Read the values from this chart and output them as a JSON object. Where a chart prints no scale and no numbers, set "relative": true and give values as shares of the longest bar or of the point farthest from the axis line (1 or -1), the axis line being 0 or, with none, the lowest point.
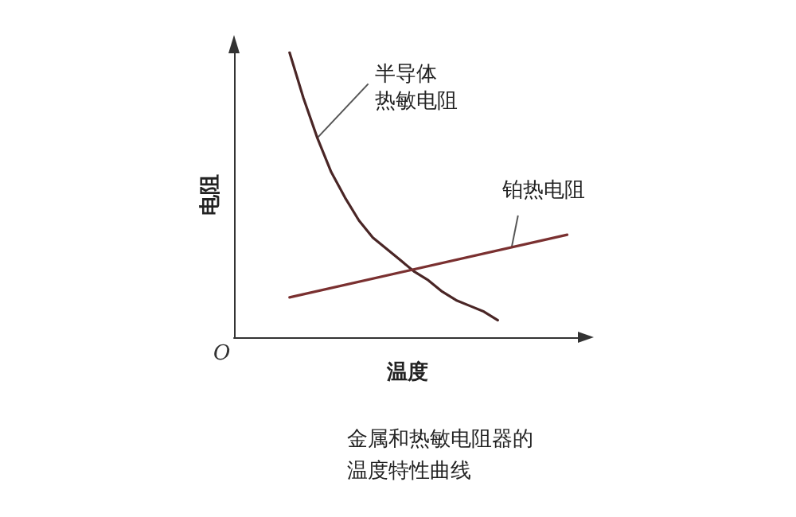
{
  "chart_data": {
    "type": "line",
    "relative": true,
    "xlabel": "温度",
    "ylabel": "电阻",
    "categories": [
      null,
      null,
      null,
      null,
      null,
      null,
      null,
      null,
      null,
      null,
      null,
      null,
      null,
      null,
      null,
      null,
      null,
      null,
      null,
      null,
      null,
      null,
      null,
      null,
      null,
      null
    ],
    "series": [
      {
        "name": "半导体热敏电阻",
        "color": "#4a2626",
        "values": [
          null,
          null,
          null,
          null,
          1,
          0.84,
          0.7,
          0.58,
          0.49,
          0.41,
          0.35,
          0.31,
          0.27,
          0.23,
          0.2,
          0.16,
          0.13,
          0.11,
          0.09,
          0.06,
          null,
          null,
          null,
          null,
          null,
          null
        ]
      },
      {
        "name": "铂热电阻",
        "color": "#7a3030",
        "values": [
          null,
          null,
          null,
          null,
          0.14,
          null,
          null,
          null,
          null,
          null,
          null,
          null,
          null,
          null,
          null,
          null,
          null,
          null,
          null,
          null,
          null,
          null,
          null,
          null,
          0.36,
          null
        ]
      }
    ],
    "marker": "none",
    "grid": false,
    "legend": false,
    "annotations": [
      "O",
      "金属和热敏电阻器的",
      "温度特性曲线"
    ]
  }
}
